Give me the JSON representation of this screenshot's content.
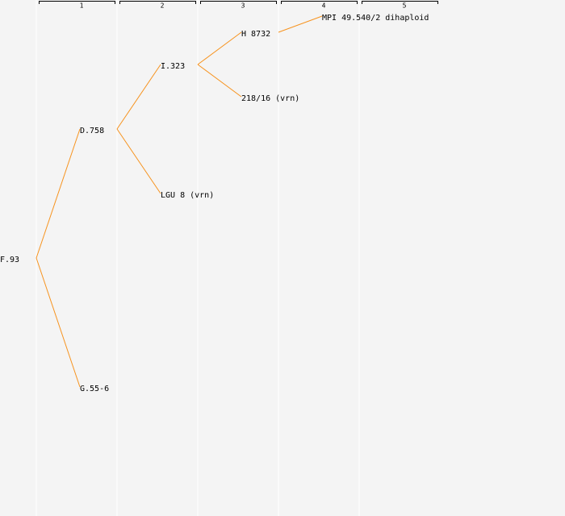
{
  "columns": [
    "1",
    "2",
    "3",
    "4",
    "5"
  ],
  "nodes": [
    {
      "label": "F.93"
    },
    {
      "label": "D.758"
    },
    {
      "label": "G.55-6"
    },
    {
      "label": "I.323"
    },
    {
      "label": "LGU 8 (vrn)"
    },
    {
      "label": "H 8732"
    },
    {
      "label": "218/16 (vrn)"
    },
    {
      "label": "MPI 49.540/2 dihaploid"
    }
  ]
}
